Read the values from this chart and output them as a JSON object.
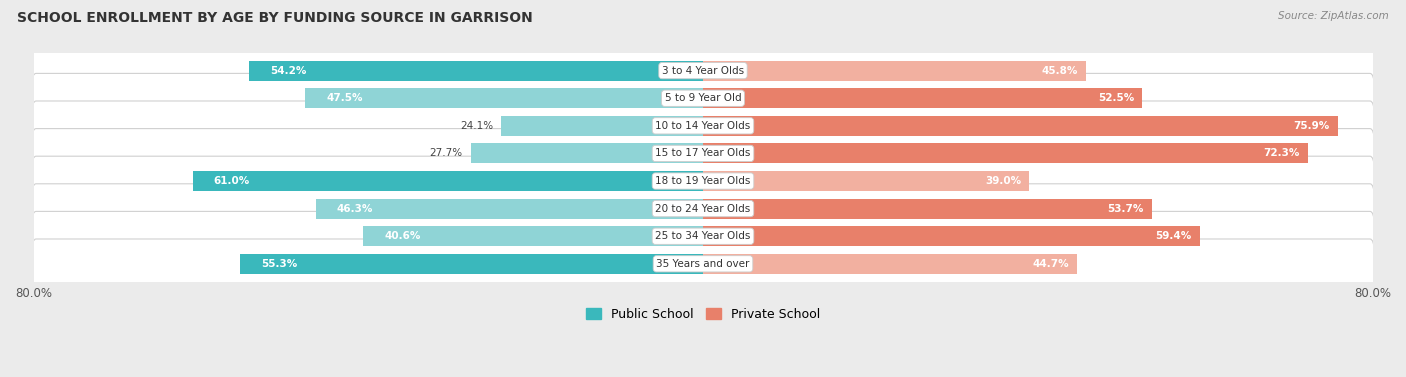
{
  "title": "SCHOOL ENROLLMENT BY AGE BY FUNDING SOURCE IN GARRISON",
  "source": "Source: ZipAtlas.com",
  "categories": [
    "3 to 4 Year Olds",
    "5 to 9 Year Old",
    "10 to 14 Year Olds",
    "15 to 17 Year Olds",
    "18 to 19 Year Olds",
    "20 to 24 Year Olds",
    "25 to 34 Year Olds",
    "35 Years and over"
  ],
  "public_values": [
    54.2,
    47.5,
    24.1,
    27.7,
    61.0,
    46.3,
    40.6,
    55.3
  ],
  "private_values": [
    45.8,
    52.5,
    75.9,
    72.3,
    39.0,
    53.7,
    59.4,
    44.7
  ],
  "public_color_strong": "#3ab8bc",
  "public_color_light": "#8fd4d6",
  "private_color_strong": "#e8806a",
  "private_color_light": "#f2b0a0",
  "axis_limit": 80.0,
  "background_color": "#ebebeb",
  "row_bg_color": "#f7f7f7",
  "legend_public": "Public School",
  "legend_private": "Private School",
  "label_inside_threshold": 30
}
